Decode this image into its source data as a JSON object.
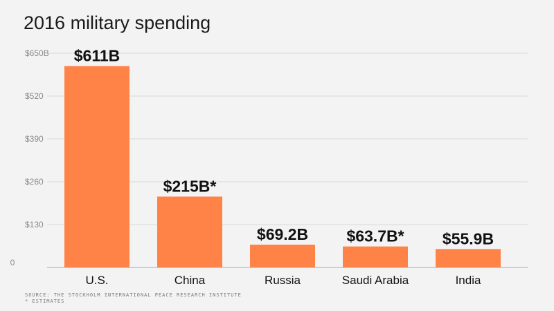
{
  "chart_data": {
    "type": "bar",
    "title": "2016 military spending",
    "categories": [
      "U.S.",
      "China",
      "Russia",
      "Saudi Arabia",
      "India"
    ],
    "values": [
      611,
      215,
      69.2,
      63.7,
      55.9
    ],
    "data_labels": [
      "$611B",
      "$215B*",
      "$69.2B",
      "$63.7B*",
      "$55.9B"
    ],
    "y_ticks": [
      {
        "value": 0,
        "label": "0"
      },
      {
        "value": 130,
        "label": "$130"
      },
      {
        "value": 260,
        "label": "$260"
      },
      {
        "value": 390,
        "label": "$390"
      },
      {
        "value": 520,
        "label": "$520"
      },
      {
        "value": 650,
        "label": "$650B"
      }
    ],
    "ylim": [
      0,
      650
    ],
    "xlabel": "",
    "ylabel": "",
    "grid": true,
    "bar_color": "#ff8247",
    "grid_color": "#d9d9d9",
    "axis_color": "#aaaaaa"
  },
  "footnotes": {
    "source": "SOURCE: THE STOCKHOLM INTERNATIONAL PEACE RESEARCH INSTITUTE",
    "estimates": "* ESTIMATES"
  }
}
